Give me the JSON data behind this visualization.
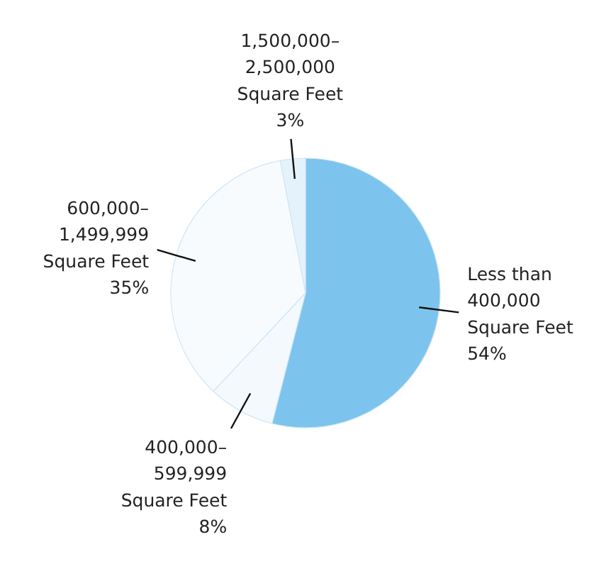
{
  "chart_data": {
    "type": "pie",
    "categories": [
      "Less than\n400,000\nSquare Feet",
      "400,000–\n599,999\nSquare Feet",
      "600,000–\n1,499,999\nSquare Feet",
      "1,500,000–\n2,500,000\nSquare Feet"
    ],
    "values": [
      54,
      8,
      35,
      3
    ],
    "value_labels": [
      "54%",
      "8%",
      "35%",
      "3%"
    ],
    "colors": [
      "#7cc4ee",
      "#f3f9fd",
      "#f8fbfe",
      "#e4f2fb"
    ]
  }
}
